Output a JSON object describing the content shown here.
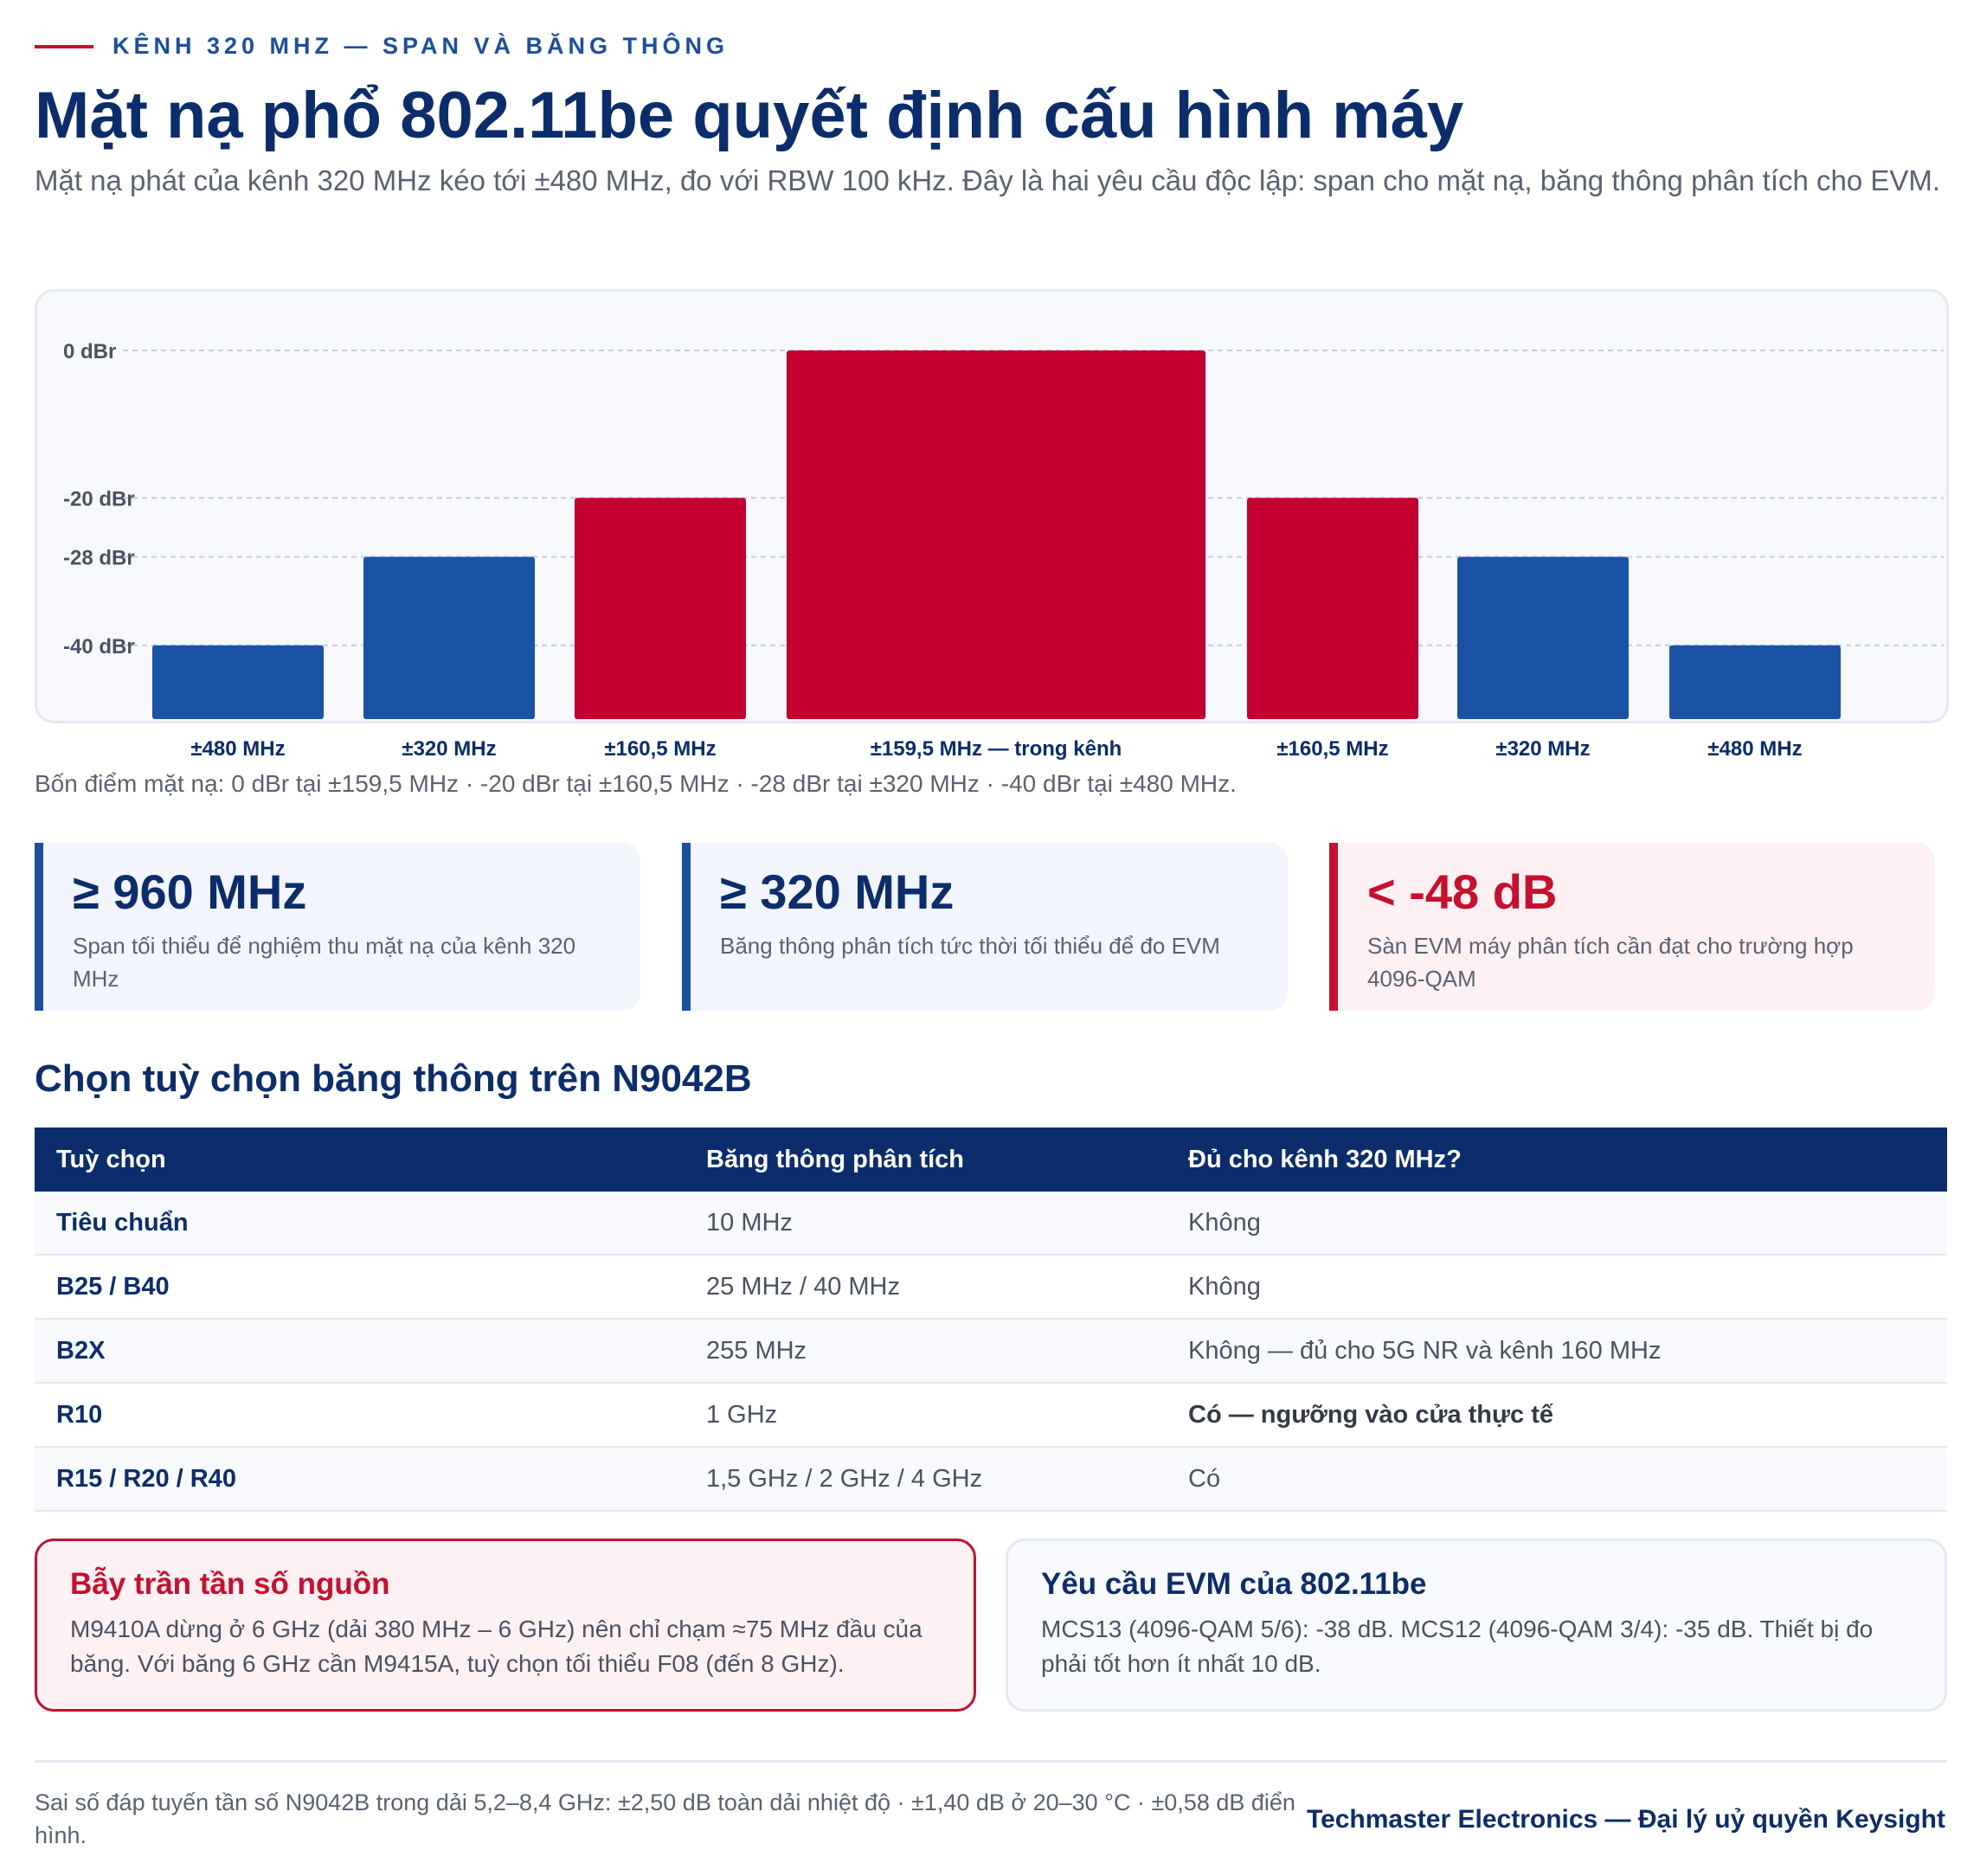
{
  "header": {
    "eyebrow": "KÊNH 320 MHZ — SPAN VÀ BĂNG THÔNG",
    "title": "Mặt nạ phổ 802.11be quyết định cấu hình máy",
    "lead": "Mặt nạ phát của kênh 320 MHz kéo tới ±480 MHz, đo với RBW 100 kHz. Đây là hai yêu cầu độc lập: span cho mặt nạ, băng thông phân tích cho EVM."
  },
  "chart_data": {
    "type": "bar",
    "title": "",
    "xlabel": "",
    "ylabel": "",
    "ylim": [
      -50,
      0
    ],
    "y_ticks": [
      {
        "value": 0,
        "label": "0 dBr"
      },
      {
        "value": -20,
        "label": "-20 dBr"
      },
      {
        "value": -28,
        "label": "-28 dBr"
      },
      {
        "value": -40,
        "label": "-40 dBr"
      }
    ],
    "grid": true,
    "categories": [
      "±480 MHz",
      "±320 MHz",
      "±160,5 MHz",
      "±159,5 MHz — trong kênh",
      "±160,5 MHz",
      "±320 MHz",
      "±480 MHz"
    ],
    "values": [
      -40,
      -28,
      -20,
      0,
      -20,
      -28,
      -40
    ],
    "colors": [
      "#1a52a5",
      "#1a52a5",
      "#c40030",
      "#c40030",
      "#c40030",
      "#1a52a5",
      "#1a52a5"
    ],
    "caption": "Bốn điểm mặt nạ: 0 dBr tại ±159,5 MHz · -20 dBr tại ±160,5 MHz · -28 dBr tại ±320 MHz · -40 dBr tại ±480 MHz."
  },
  "stats": [
    {
      "value": "≥ 960 MHz",
      "desc": "Span tối thiểu để nghiệm thu mặt nạ của kênh 320 MHz"
    },
    {
      "value": "≥ 320 MHz",
      "desc": "Băng thông phân tích tức thời tối thiểu để đo EVM"
    },
    {
      "value": "< -48 dB",
      "desc": "Sàn EVM máy phân tích cần đạt cho trường hợp 4096-QAM"
    }
  ],
  "options": {
    "heading": "Chọn tuỳ chọn băng thông trên N9042B",
    "columns": [
      "Tuỳ chọn",
      "Băng thông phân tích",
      "Đủ cho kênh 320 MHz?"
    ],
    "rows": [
      [
        "Tiêu chuẩn",
        "10 MHz",
        "Không"
      ],
      [
        "B25 / B40",
        "25 MHz / 40 MHz",
        "Không"
      ],
      [
        "B2X",
        "255 MHz",
        "Không — đủ cho 5G NR và kênh 160 MHz"
      ],
      [
        "R10",
        "1 GHz",
        "Có — ngưỡng vào cửa thực tế"
      ],
      [
        "R15 / R20 / R40",
        "1,5 GHz / 2 GHz / 4 GHz",
        "Có"
      ]
    ]
  },
  "cards": {
    "warn": {
      "title": "Bẫy trần tần số nguồn",
      "body": "M9410A dừng ở 6 GHz (dải 380 MHz – 6 GHz) nên chỉ chạm ≈75 MHz đầu của băng. Với băng 6 GHz cần M9415A, tuỳ chọn tối thiểu F08 (đến 8 GHz)."
    },
    "info": {
      "title": "Yêu cầu EVM của 802.11be",
      "body": "MCS13 (4096-QAM 5/6): -38 dB. MCS12 (4096-QAM 3/4): -35 dB. Thiết bị đo phải tốt hơn ít nhất 10 dB."
    }
  },
  "footer": {
    "note": "Sai số đáp tuyến tần số N9042B trong dải 5,2–8,4 GHz: ±2,50 dB toàn dải nhiệt độ · ±1,40 dB ở 20–30 °C · ±0,58 dB điển hình.",
    "brand": "Techmaster Electronics — Đại lý uỷ quyền Keysight"
  }
}
